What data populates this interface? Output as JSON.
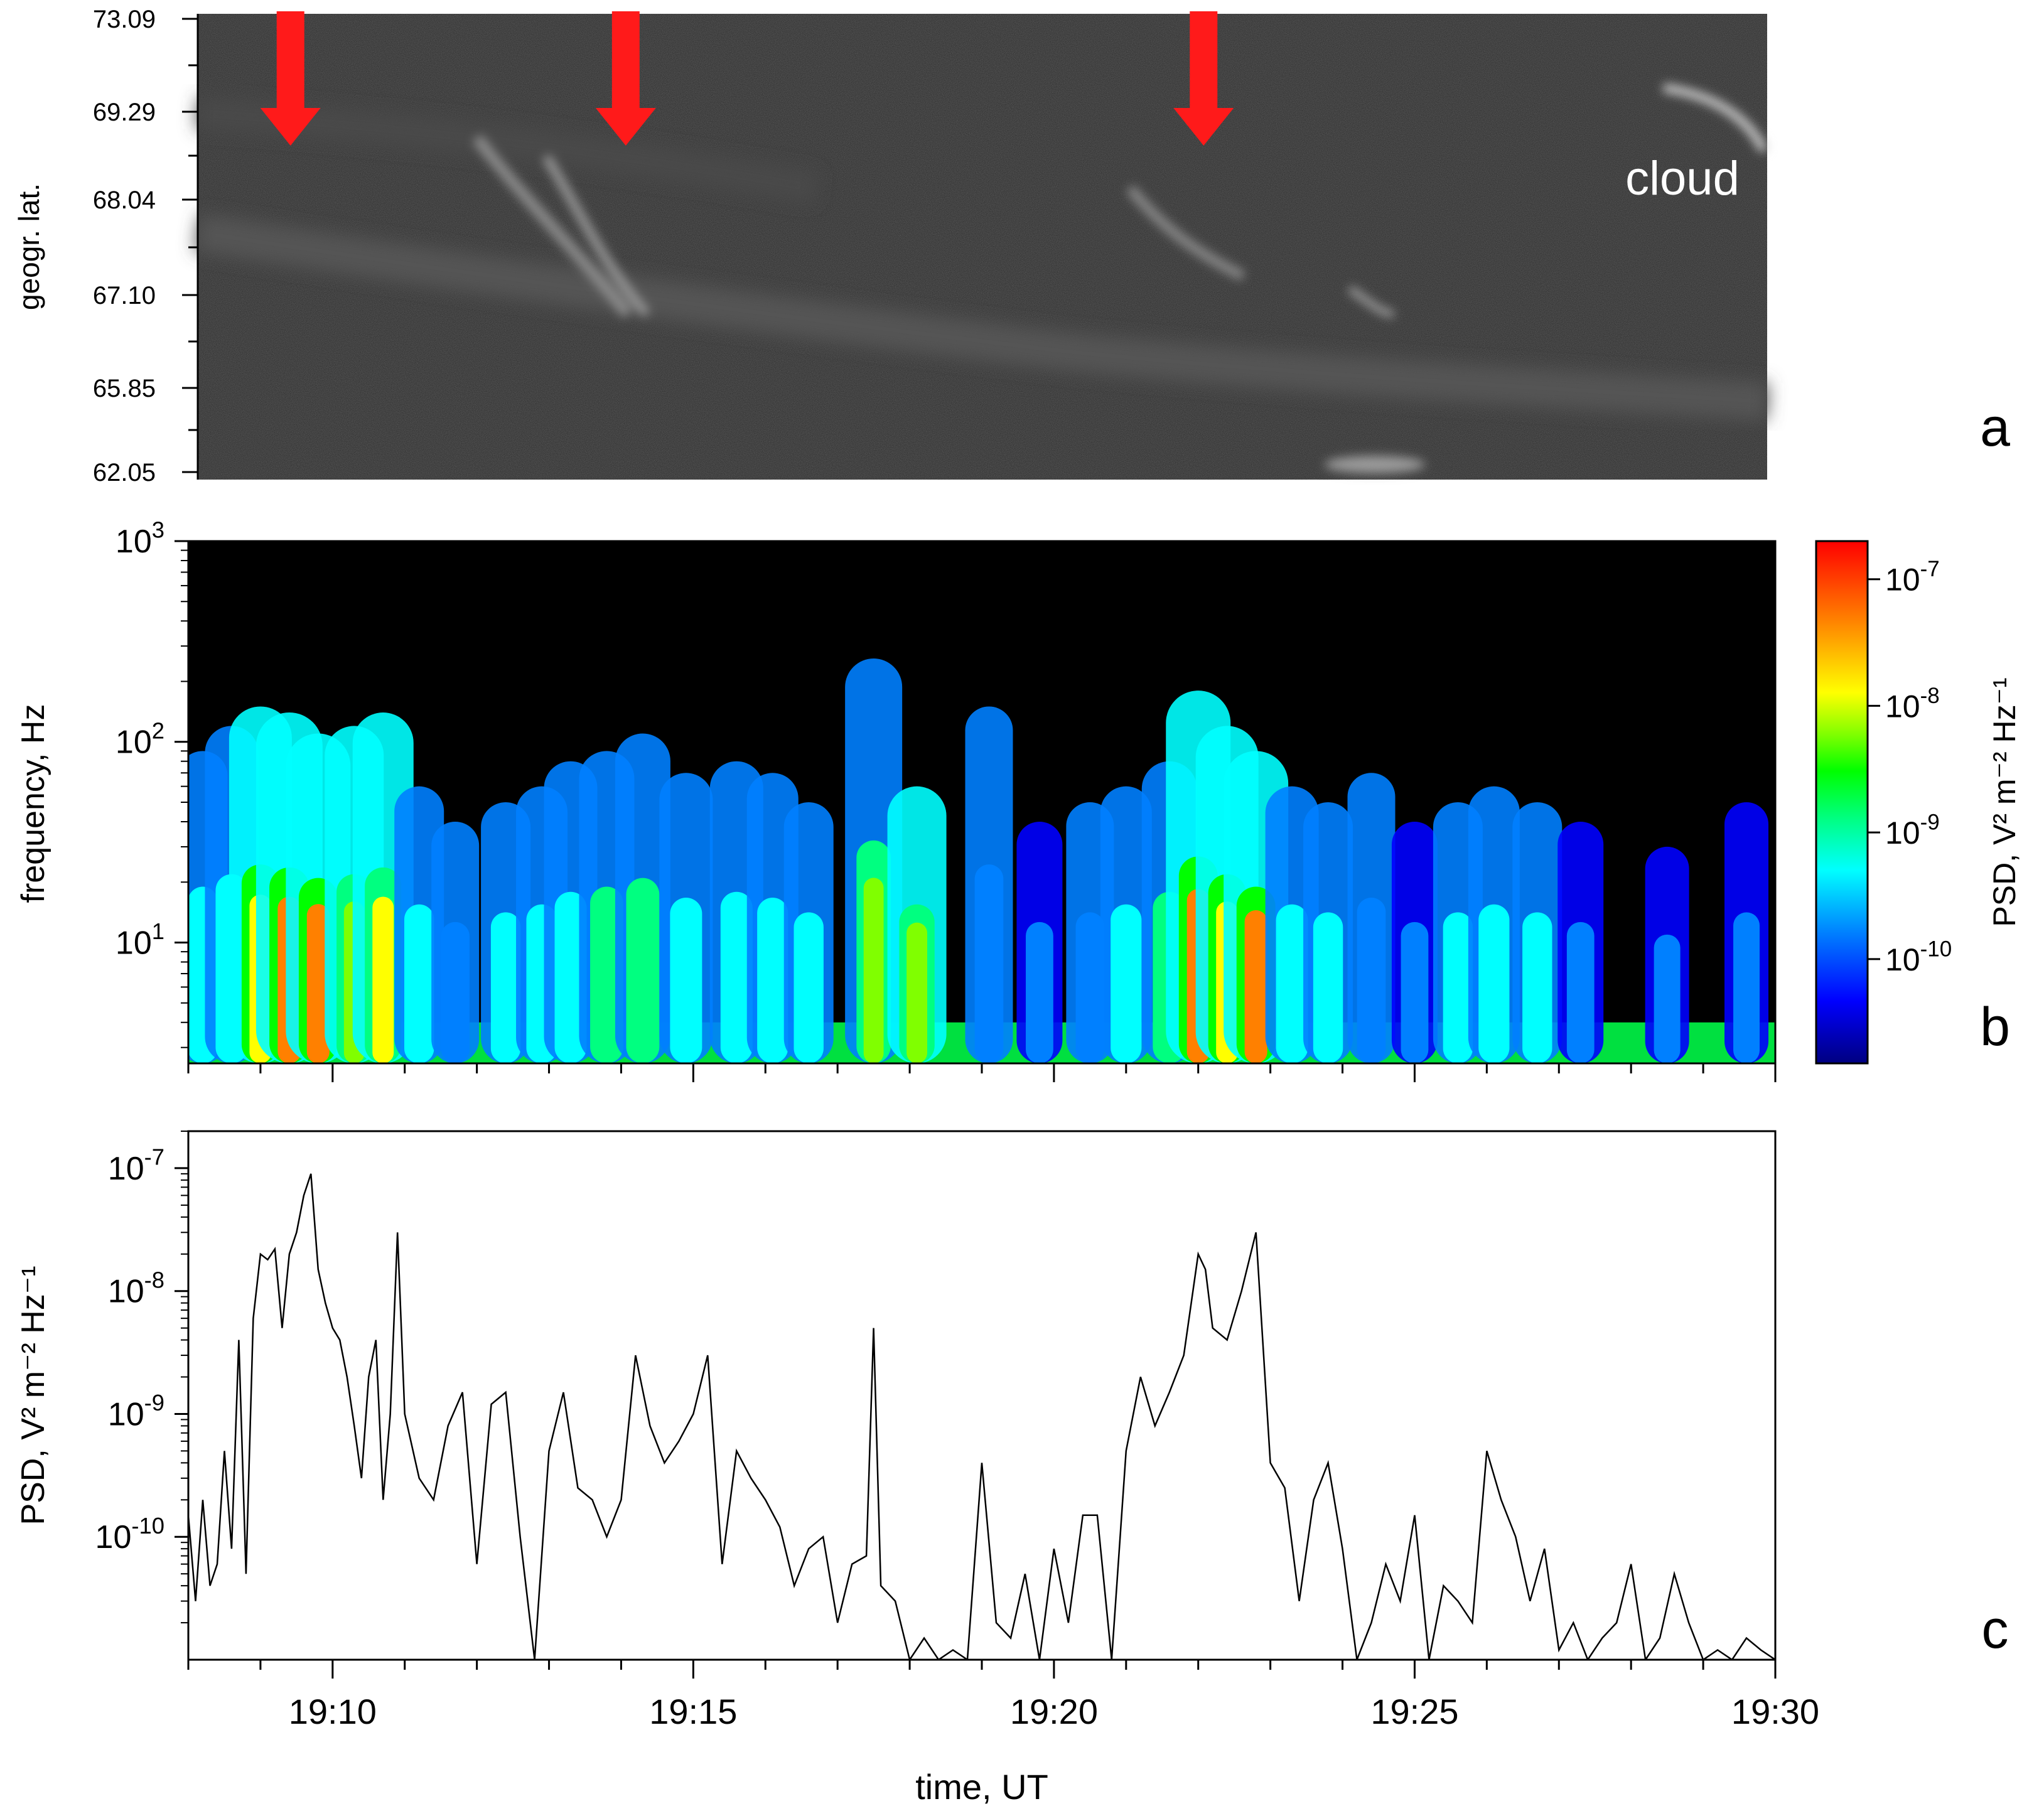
{
  "panel_letters": {
    "a": "a",
    "b": "b",
    "c": "c"
  },
  "colors": {
    "arrow": "#ff1a1a",
    "keogram_bg": "#2a2a2a",
    "spectrogram_bg": "#000000",
    "line": "#000000",
    "colormap": [
      "#000080",
      "#0000ff",
      "#0080ff",
      "#00ffff",
      "#00ff80",
      "#00ff00",
      "#80ff00",
      "#ffff00",
      "#ff8000",
      "#ff0000"
    ]
  },
  "chart_data": [
    {
      "panel": "a",
      "type": "heatmap",
      "ylabel": "geogr. lat.",
      "yticks": [
        "73.09",
        "69.29",
        "68.04",
        "67.10",
        "65.85",
        "62.05"
      ],
      "annotations": [
        {
          "text": "cloud"
        }
      ],
      "arrows_at_time_min": [
        9.3,
        14.0,
        22.1
      ],
      "xlim_min": [
        8.0,
        30.0
      ]
    },
    {
      "panel": "b",
      "type": "heatmap",
      "ylabel": "frequency, Hz",
      "yscale": "log",
      "ylim": [
        2.5,
        1000
      ],
      "yticks": [
        {
          "base": "10",
          "exp": "3",
          "value": 1000
        },
        {
          "base": "10",
          "exp": "2",
          "value": 100
        },
        {
          "base": "10",
          "exp": "1",
          "value": 10
        }
      ],
      "colorbar": {
        "label": "PSD, V² m⁻² Hz⁻¹",
        "scale": "log",
        "range": [
          1.5e-11,
          2e-07
        ],
        "ticks": [
          {
            "base": "10",
            "exp": "-7",
            "value": 1e-07
          },
          {
            "base": "10",
            "exp": "-8",
            "value": 1e-08
          },
          {
            "base": "10",
            "exp": "-9",
            "value": 1e-09
          },
          {
            "base": "10",
            "exp": "-10",
            "value": 1e-10
          }
        ]
      },
      "bursts": [
        {
          "t": 8.2,
          "fmax": 90,
          "level": 0.45
        },
        {
          "t": 8.6,
          "fmax": 120,
          "level": 0.55
        },
        {
          "t": 9.0,
          "fmax": 150,
          "level": 0.8
        },
        {
          "t": 9.4,
          "fmax": 140,
          "level": 0.9
        },
        {
          "t": 9.8,
          "fmax": 110,
          "level": 0.85
        },
        {
          "t": 10.3,
          "fmax": 120,
          "level": 0.7
        },
        {
          "t": 10.7,
          "fmax": 140,
          "level": 0.75
        },
        {
          "t": 11.2,
          "fmax": 60,
          "level": 0.45
        },
        {
          "t": 11.7,
          "fmax": 40,
          "level": 0.4
        },
        {
          "t": 12.4,
          "fmax": 50,
          "level": 0.45
        },
        {
          "t": 12.9,
          "fmax": 60,
          "level": 0.5
        },
        {
          "t": 13.3,
          "fmax": 80,
          "level": 0.55
        },
        {
          "t": 13.8,
          "fmax": 90,
          "level": 0.6
        },
        {
          "t": 14.3,
          "fmax": 110,
          "level": 0.6
        },
        {
          "t": 14.9,
          "fmax": 70,
          "level": 0.55
        },
        {
          "t": 15.6,
          "fmax": 80,
          "level": 0.55
        },
        {
          "t": 16.1,
          "fmax": 70,
          "level": 0.5
        },
        {
          "t": 16.6,
          "fmax": 50,
          "level": 0.45
        },
        {
          "t": 17.5,
          "fmax": 260,
          "level": 0.65
        },
        {
          "t": 18.1,
          "fmax": 60,
          "level": 0.7
        },
        {
          "t": 19.1,
          "fmax": 150,
          "level": 0.4
        },
        {
          "t": 19.8,
          "fmax": 40,
          "level": 0.35
        },
        {
          "t": 20.5,
          "fmax": 50,
          "level": 0.4
        },
        {
          "t": 21.0,
          "fmax": 60,
          "level": 0.5
        },
        {
          "t": 21.6,
          "fmax": 80,
          "level": 0.6
        },
        {
          "t": 22.0,
          "fmax": 180,
          "level": 0.85
        },
        {
          "t": 22.4,
          "fmax": 120,
          "level": 0.8
        },
        {
          "t": 22.8,
          "fmax": 90,
          "level": 0.85
        },
        {
          "t": 23.3,
          "fmax": 60,
          "level": 0.55
        },
        {
          "t": 23.8,
          "fmax": 50,
          "level": 0.45
        },
        {
          "t": 24.4,
          "fmax": 70,
          "level": 0.4
        },
        {
          "t": 25.0,
          "fmax": 40,
          "level": 0.35
        },
        {
          "t": 25.6,
          "fmax": 50,
          "level": 0.45
        },
        {
          "t": 26.1,
          "fmax": 60,
          "level": 0.5
        },
        {
          "t": 26.7,
          "fmax": 50,
          "level": 0.45
        },
        {
          "t": 27.3,
          "fmax": 40,
          "level": 0.35
        },
        {
          "t": 28.5,
          "fmax": 30,
          "level": 0.3
        },
        {
          "t": 29.6,
          "fmax": 50,
          "level": 0.3
        }
      ]
    },
    {
      "panel": "c",
      "type": "line",
      "xlabel": "time, UT",
      "ylabel": "PSD, V² m⁻² Hz⁻¹",
      "yscale": "log",
      "ylim": [
        1e-11,
        2e-07
      ],
      "xlim_min": [
        8.0,
        30.0
      ],
      "yticks": [
        {
          "base": "10",
          "exp": "-7",
          "value": 1e-07
        },
        {
          "base": "10",
          "exp": "-8",
          "value": 1e-08
        },
        {
          "base": "10",
          "exp": "-9",
          "value": 1e-09
        },
        {
          "base": "10",
          "exp": "-10",
          "value": 1e-10
        }
      ],
      "xticks": [
        {
          "label": "19:10",
          "t": 10
        },
        {
          "label": "19:15",
          "t": 15
        },
        {
          "label": "19:20",
          "t": 20
        },
        {
          "label": "19:25",
          "t": 25
        },
        {
          "label": "19:30",
          "t": 30
        }
      ],
      "series": [
        {
          "x_min": [
            8.0,
            8.1,
            8.2,
            8.3,
            8.4,
            8.5,
            8.6,
            8.7,
            8.8,
            8.9,
            9.0,
            9.1,
            9.2,
            9.3,
            9.4,
            9.5,
            9.6,
            9.7,
            9.8,
            9.9,
            10.0,
            10.1,
            10.2,
            10.3,
            10.4,
            10.5,
            10.6,
            10.7,
            10.8,
            10.9,
            11.0,
            11.2,
            11.4,
            11.6,
            11.8,
            12.0,
            12.2,
            12.4,
            12.6,
            12.8,
            13.0,
            13.2,
            13.4,
            13.6,
            13.8,
            14.0,
            14.2,
            14.4,
            14.6,
            14.8,
            15.0,
            15.2,
            15.4,
            15.6,
            15.8,
            16.0,
            16.2,
            16.4,
            16.6,
            16.8,
            17.0,
            17.2,
            17.4,
            17.5,
            17.6,
            17.8,
            18.0,
            18.2,
            18.4,
            18.6,
            18.8,
            19.0,
            19.2,
            19.4,
            19.6,
            19.8,
            20.0,
            20.2,
            20.4,
            20.6,
            20.8,
            21.0,
            21.2,
            21.4,
            21.6,
            21.8,
            22.0,
            22.1,
            22.2,
            22.4,
            22.6,
            22.8,
            23.0,
            23.2,
            23.4,
            23.6,
            23.8,
            24.0,
            24.2,
            24.4,
            24.6,
            24.8,
            25.0,
            25.2,
            25.4,
            25.6,
            25.8,
            26.0,
            26.2,
            26.4,
            26.6,
            26.8,
            27.0,
            27.2,
            27.4,
            27.6,
            27.8,
            28.0,
            28.2,
            28.4,
            28.6,
            28.8,
            29.0,
            29.2,
            29.4,
            29.6,
            29.8,
            30.0
          ],
          "y": [
            1.5e-10,
            3e-11,
            2e-10,
            4e-11,
            6e-11,
            5e-10,
            8e-11,
            4e-09,
            5e-11,
            6e-09,
            2e-08,
            1.8e-08,
            2.2e-08,
            5e-09,
            2e-08,
            3e-08,
            6e-08,
            9e-08,
            1.5e-08,
            8e-09,
            5e-09,
            4e-09,
            2e-09,
            8e-10,
            3e-10,
            2e-09,
            4e-09,
            2e-10,
            1e-09,
            3e-08,
            1e-09,
            3e-10,
            2e-10,
            8e-10,
            1.5e-09,
            6e-11,
            1.2e-09,
            1.5e-09,
            1e-10,
            1e-11,
            5e-10,
            1.5e-09,
            2.5e-10,
            2e-10,
            1e-10,
            2e-10,
            3e-09,
            8e-10,
            4e-10,
            6e-10,
            1e-09,
            3e-09,
            6e-11,
            5e-10,
            3e-10,
            2e-10,
            1.2e-10,
            4e-11,
            8e-11,
            1e-10,
            2e-11,
            6e-11,
            7e-11,
            5e-09,
            4e-11,
            3e-11,
            1e-11,
            1.5e-11,
            1e-11,
            1.2e-11,
            1e-11,
            4e-10,
            2e-11,
            1.5e-11,
            5e-11,
            1e-11,
            8e-11,
            2e-11,
            1.5e-10,
            1.5e-10,
            1e-11,
            5e-10,
            2e-09,
            8e-10,
            1.5e-09,
            3e-09,
            2e-08,
            1.5e-08,
            5e-09,
            4e-09,
            1e-08,
            3e-08,
            4e-10,
            2.5e-10,
            3e-11,
            2e-10,
            4e-10,
            8e-11,
            1e-11,
            2e-11,
            6e-11,
            3e-11,
            1.5e-10,
            1e-11,
            4e-11,
            3e-11,
            2e-11,
            5e-10,
            2e-10,
            1e-10,
            3e-11,
            8e-11,
            1.2e-11,
            2e-11,
            1e-11,
            1.5e-11,
            2e-11,
            6e-11,
            1e-11,
            1.5e-11,
            5e-11,
            2e-11,
            1e-11,
            1.2e-11,
            1e-11,
            1.5e-11,
            1.2e-11,
            1e-11
          ]
        }
      ]
    }
  ]
}
